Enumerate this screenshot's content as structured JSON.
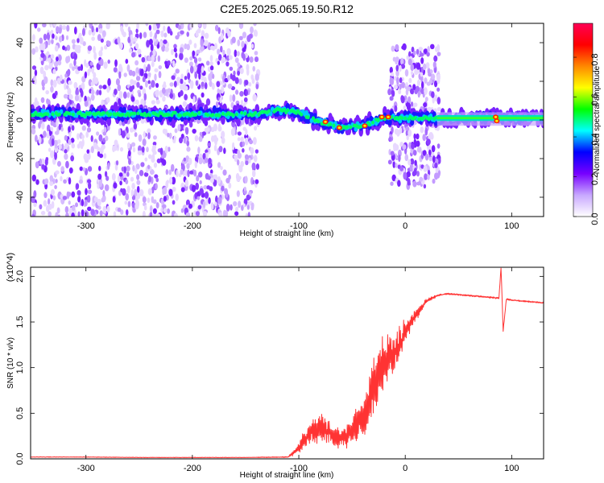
{
  "title": "C2E5.2025.065.19.50.R12",
  "chart_data": [
    {
      "type": "heatmap",
      "xlabel": "Height of straight line (km)",
      "ylabel": "Frequency (Hz)",
      "xlim": [
        -352,
        130
      ],
      "ylim": [
        -50,
        50
      ],
      "xticks": [
        -300,
        -200,
        -100,
        0,
        100
      ],
      "yticks": [
        -40,
        -20,
        0,
        20,
        40
      ],
      "colorbar": {
        "label": "Normalized spectral amplitude",
        "range": [
          0,
          0.97
        ],
        "ticks": [
          "0.0",
          "0.2",
          "0.4",
          "0.6",
          "0.8"
        ],
        "colors": [
          "#ffffff",
          "#c8a8ff",
          "#7700ff",
          "#0000ff",
          "#00ffff",
          "#00ff00",
          "#ffff00",
          "#ff8800",
          "#ff0000",
          "#ff0055"
        ]
      },
      "ridge_center_hz": [
        {
          "x": -350,
          "y": 3
        },
        {
          "x": -140,
          "y": 3
        },
        {
          "x": -120,
          "y": 5
        },
        {
          "x": -100,
          "y": 4
        },
        {
          "x": -80,
          "y": -1
        },
        {
          "x": -60,
          "y": -4
        },
        {
          "x": -40,
          "y": -3
        },
        {
          "x": -20,
          "y": 1
        },
        {
          "x": 0,
          "y": 1
        },
        {
          "x": 30,
          "y": 1
        },
        {
          "x": 130,
          "y": 1
        }
      ],
      "noise_regions_km": [
        [
          -350,
          -278
        ],
        [
          -274,
          -138
        ],
        [
          -15,
          32
        ]
      ],
      "noise_band_hz": [
        [
          -50,
          50
        ],
        [
          -50,
          50
        ],
        [
          -35,
          38
        ]
      ]
    },
    {
      "type": "line",
      "xlabel": "Height of straight line (km)",
      "ylabel": "SNR (10 * v/v)",
      "y_multiplier": "(x10^4)",
      "xlim": [
        -352,
        130
      ],
      "ylim": [
        0,
        2.1
      ],
      "xticks": [
        -300,
        -200,
        -100,
        0,
        100
      ],
      "yticks": [
        "0.0",
        "0.5",
        "1.0",
        "1.5",
        "2.0"
      ],
      "color": "#ff3333",
      "series": [
        {
          "x": [
            -350,
            -300,
            -250,
            -200,
            -150,
            -110,
            -100,
            -90,
            -80,
            -70,
            -60,
            -50,
            -40,
            -35,
            -30,
            -25,
            -20,
            -15,
            -10,
            -5,
            0,
            10,
            20,
            30,
            40,
            50,
            60,
            70,
            80,
            88,
            90,
            92,
            95,
            100,
            110,
            120,
            130
          ],
          "y": [
            0.02,
            0.02,
            0.015,
            0.015,
            0.015,
            0.02,
            0.12,
            0.3,
            0.35,
            0.28,
            0.22,
            0.3,
            0.45,
            0.55,
            0.8,
            0.95,
            1.05,
            1.15,
            1.15,
            1.25,
            1.4,
            1.58,
            1.73,
            1.79,
            1.81,
            1.8,
            1.79,
            1.78,
            1.77,
            1.76,
            2.1,
            1.4,
            1.75,
            1.74,
            1.73,
            1.72,
            1.71
          ],
          "noise_amp": [
            0.005,
            0.005,
            0.005,
            0.005,
            0.005,
            0.01,
            0.1,
            0.25,
            0.3,
            0.22,
            0.2,
            0.28,
            0.4,
            0.45,
            0.55,
            0.55,
            0.55,
            0.45,
            0.4,
            0.35,
            0.25,
            0.12,
            0.05,
            0.02,
            0.015,
            0.015,
            0.015,
            0.015,
            0.015,
            0.02,
            0.02,
            0.02,
            0.02,
            0.015,
            0.015,
            0.015,
            0.015
          ]
        }
      ]
    }
  ]
}
